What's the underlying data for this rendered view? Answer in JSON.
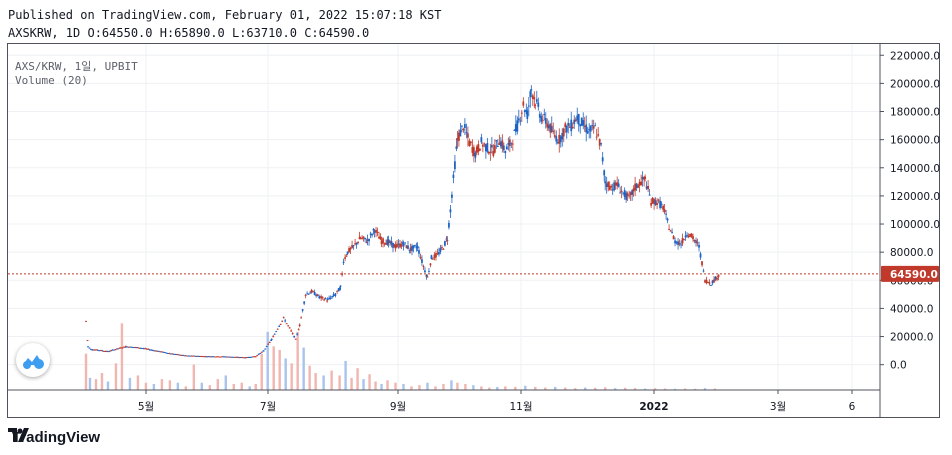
{
  "header": {
    "published": "Published on TradingView.com, February 01, 2022 15:07:18 KST",
    "ohlc": "AXSKRW, 1D O:64550.0 H:65890.0 L:63710.0 C:64590.0"
  },
  "legend": {
    "symbol": "AXS/KRW, 1일, UPBIT",
    "volume": "Volume (20)"
  },
  "footer": {
    "brand": "TradingView"
  },
  "colors": {
    "up": "#c0392b",
    "down": "#1e63c4",
    "vol_up": "#f0b6b0",
    "vol_down": "#a9c4ec",
    "price_line": "#c0392b"
  },
  "chart_data": {
    "type": "candlestick",
    "y_ticks": [
      "220000.0",
      "200000.0",
      "180000.0",
      "160000.0",
      "140000.0",
      "120000.0",
      "100000.0",
      "80000.0",
      "60000.0",
      "40000.0",
      "20000.0",
      "0.0"
    ],
    "x_ticks": [
      "5월",
      "7월",
      "9월",
      "11월",
      "2022",
      "3월",
      "6"
    ],
    "last_price_label": "64590.0",
    "last_price": 64590,
    "ylim": [
      -18000,
      228000
    ],
    "price_path": [
      [
        0,
        31000
      ],
      [
        2,
        13000
      ],
      [
        5,
        11000
      ],
      [
        12,
        10500
      ],
      [
        22,
        9500
      ],
      [
        32,
        11500
      ],
      [
        40,
        13000
      ],
      [
        55,
        12000
      ],
      [
        70,
        10000
      ],
      [
        85,
        8000
      ],
      [
        100,
        6500
      ],
      [
        120,
        6000
      ],
      [
        140,
        5800
      ],
      [
        160,
        5200
      ],
      [
        170,
        6000
      ],
      [
        178,
        10000
      ],
      [
        186,
        18000
      ],
      [
        192,
        26000
      ],
      [
        198,
        33000
      ],
      [
        204,
        26000
      ],
      [
        210,
        18000
      ],
      [
        214,
        28000
      ],
      [
        220,
        50000
      ],
      [
        226,
        52000
      ],
      [
        234,
        48000
      ],
      [
        242,
        46000
      ],
      [
        250,
        50000
      ],
      [
        255,
        55000
      ],
      [
        258,
        74000
      ],
      [
        262,
        80000
      ],
      [
        268,
        84000
      ],
      [
        275,
        90000
      ],
      [
        282,
        88000
      ],
      [
        289,
        96000
      ],
      [
        296,
        88000
      ],
      [
        303,
        87000
      ],
      [
        310,
        84000
      ],
      [
        318,
        86000
      ],
      [
        325,
        82000
      ],
      [
        332,
        84000
      ],
      [
        338,
        70000
      ],
      [
        342,
        62000
      ],
      [
        346,
        76000
      ],
      [
        352,
        78000
      ],
      [
        358,
        84000
      ],
      [
        362,
        90000
      ],
      [
        365,
        110000
      ],
      [
        368,
        132000
      ],
      [
        372,
        160000
      ],
      [
        378,
        170000
      ],
      [
        384,
        158000
      ],
      [
        390,
        150000
      ],
      [
        396,
        158000
      ],
      [
        402,
        154000
      ],
      [
        408,
        152000
      ],
      [
        414,
        160000
      ],
      [
        420,
        152000
      ],
      [
        426,
        158000
      ],
      [
        432,
        170000
      ],
      [
        438,
        185000
      ],
      [
        442,
        178000
      ],
      [
        446,
        196000
      ],
      [
        450,
        188000
      ],
      [
        456,
        176000
      ],
      [
        462,
        172000
      ],
      [
        468,
        164000
      ],
      [
        474,
        160000
      ],
      [
        480,
        168000
      ],
      [
        486,
        170000
      ],
      [
        492,
        176000
      ],
      [
        498,
        170000
      ],
      [
        504,
        166000
      ],
      [
        510,
        168000
      ],
      [
        516,
        155000
      ],
      [
        520,
        130000
      ],
      [
        526,
        126000
      ],
      [
        532,
        128000
      ],
      [
        538,
        122000
      ],
      [
        544,
        118000
      ],
      [
        550,
        126000
      ],
      [
        556,
        130000
      ],
      [
        560,
        132000
      ],
      [
        566,
        116000
      ],
      [
        572,
        116000
      ],
      [
        578,
        112000
      ],
      [
        584,
        98000
      ],
      [
        590,
        88000
      ],
      [
        596,
        86000
      ],
      [
        602,
        94000
      ],
      [
        608,
        90000
      ],
      [
        614,
        84000
      ],
      [
        620,
        60000
      ],
      [
        626,
        58000
      ],
      [
        632,
        62000
      ],
      [
        635,
        64590
      ]
    ],
    "volume_bars": [
      [
        0,
        30000
      ],
      [
        4,
        10000
      ],
      [
        10,
        9000
      ],
      [
        16,
        14000
      ],
      [
        22,
        7000
      ],
      [
        30,
        22000
      ],
      [
        36,
        55000
      ],
      [
        44,
        10000
      ],
      [
        52,
        12000
      ],
      [
        60,
        6000
      ],
      [
        68,
        5000
      ],
      [
        76,
        9000
      ],
      [
        84,
        8000
      ],
      [
        92,
        6000
      ],
      [
        100,
        3000
      ],
      [
        108,
        21000
      ],
      [
        116,
        6000
      ],
      [
        124,
        4000
      ],
      [
        132,
        9000
      ],
      [
        140,
        12000
      ],
      [
        148,
        5000
      ],
      [
        156,
        6000
      ],
      [
        164,
        3000
      ],
      [
        170,
        5000
      ],
      [
        176,
        30000
      ],
      [
        182,
        48000
      ],
      [
        188,
        36000
      ],
      [
        194,
        33000
      ],
      [
        200,
        26000
      ],
      [
        206,
        22000
      ],
      [
        212,
        48000
      ],
      [
        218,
        35000
      ],
      [
        224,
        20000
      ],
      [
        230,
        14000
      ],
      [
        238,
        12000
      ],
      [
        246,
        16000
      ],
      [
        254,
        12000
      ],
      [
        260,
        24000
      ],
      [
        266,
        10000
      ],
      [
        272,
        18000
      ],
      [
        278,
        9000
      ],
      [
        284,
        13000
      ],
      [
        290,
        7000
      ],
      [
        296,
        5000
      ],
      [
        302,
        8000
      ],
      [
        310,
        6000
      ],
      [
        318,
        5000
      ],
      [
        326,
        3000
      ],
      [
        334,
        4000
      ],
      [
        342,
        6000
      ],
      [
        350,
        3000
      ],
      [
        358,
        5000
      ],
      [
        366,
        8000
      ],
      [
        372,
        6000
      ],
      [
        380,
        5000
      ],
      [
        388,
        4000
      ],
      [
        396,
        3000
      ],
      [
        404,
        2000
      ],
      [
        412,
        2500
      ],
      [
        420,
        3000
      ],
      [
        430,
        2500
      ],
      [
        440,
        3500
      ],
      [
        450,
        2500
      ],
      [
        460,
        2000
      ],
      [
        470,
        2500
      ],
      [
        480,
        2000
      ],
      [
        490,
        1500
      ],
      [
        500,
        2000
      ],
      [
        510,
        1800
      ],
      [
        520,
        2200
      ],
      [
        530,
        1500
      ],
      [
        540,
        1800
      ],
      [
        550,
        1500
      ],
      [
        560,
        1200
      ],
      [
        570,
        1500
      ],
      [
        580,
        1200
      ],
      [
        590,
        1000
      ],
      [
        600,
        1200
      ],
      [
        610,
        1000
      ],
      [
        620,
        1500
      ],
      [
        630,
        1200
      ]
    ]
  }
}
